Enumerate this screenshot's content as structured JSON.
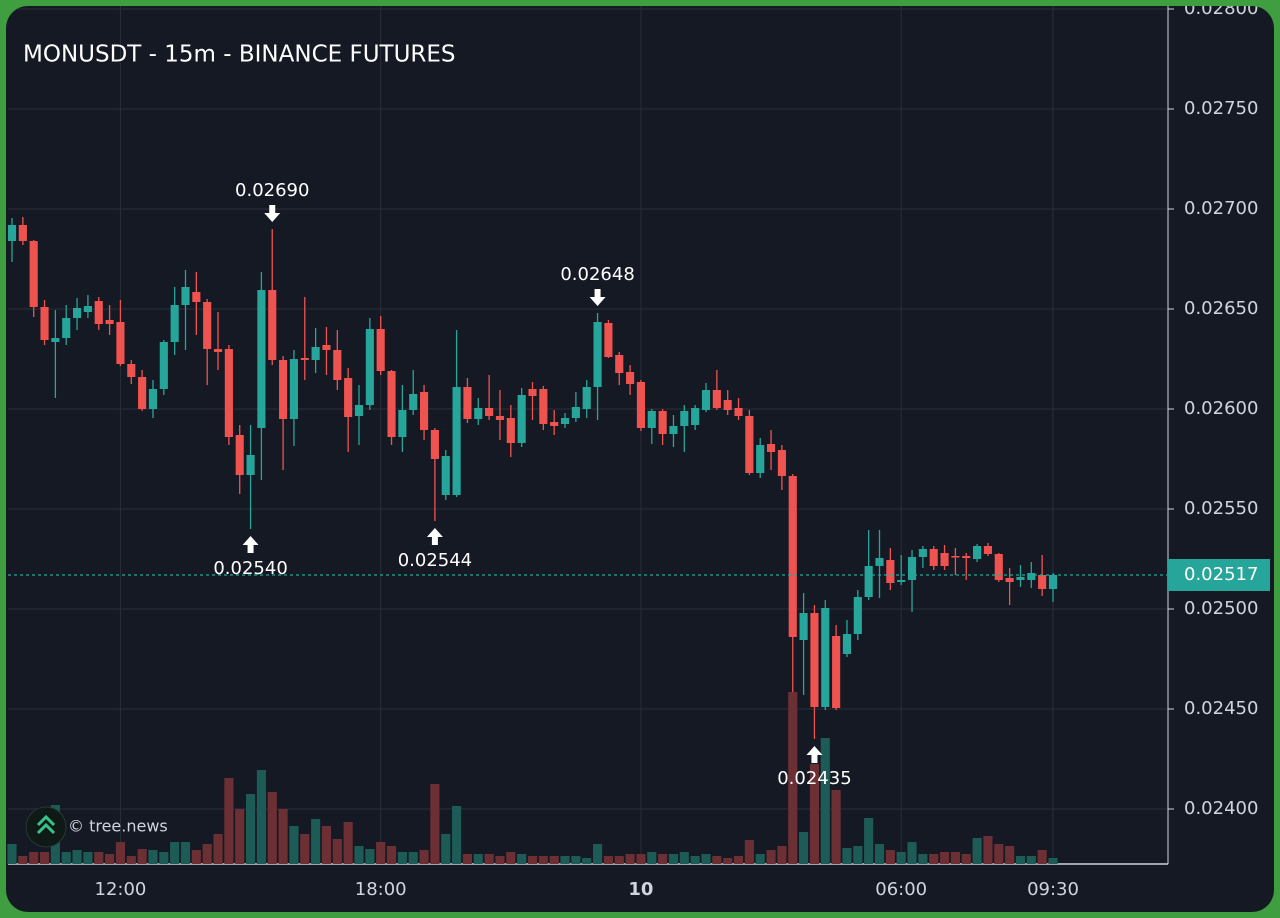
{
  "chart_data": {
    "type": "candlestick",
    "title": "MONUSDT - 15m - BINANCE FUTURES",
    "categories": [
      null,
      null,
      null,
      null,
      null,
      null,
      null,
      null,
      null,
      null,
      "12:00",
      null,
      null,
      null,
      null,
      null,
      null,
      null,
      null,
      null,
      null,
      null,
      null,
      null,
      null,
      null,
      null,
      null,
      null,
      null,
      null,
      null,
      null,
      null,
      "18:00",
      null,
      null,
      null,
      null,
      null,
      null,
      null,
      null,
      null,
      null,
      null,
      null,
      null,
      null,
      null,
      null,
      null,
      null,
      null,
      null,
      null,
      null,
      null,
      "10",
      null,
      null,
      null,
      null,
      null,
      null,
      null,
      null,
      null,
      null,
      null,
      null,
      null,
      null,
      null,
      null,
      null,
      null,
      null,
      null,
      null,
      null,
      null,
      "06:00",
      null,
      null,
      null,
      null,
      null,
      null,
      null,
      null,
      null,
      null,
      null,
      null,
      null,
      "09:30"
    ],
    "open": [
      0.02684,
      0.02692,
      0.02684,
      0.02651,
      0.026335,
      0.026355,
      0.026455,
      0.026485,
      0.02654,
      0.026445,
      0.026435,
      0.026225,
      0.02616,
      0.026,
      0.0261,
      0.026335,
      0.02652,
      0.026585,
      0.026535,
      0.0263,
      0.0263,
      0.02587,
      0.02567,
      0.025905,
      0.026595,
      0.026245,
      0.02595,
      0.026255,
      0.026245,
      0.02632,
      0.026295,
      0.026155,
      0.025965,
      0.02602,
      0.0264,
      0.02619,
      0.02586,
      0.025995,
      0.026085,
      0.025895,
      0.02557,
      0.02557,
      0.02611,
      0.02595,
      0.026005,
      0.025965,
      0.025955,
      0.02583,
      0.0261,
      0.0261,
      0.025935,
      0.025925,
      0.025955,
      0.026,
      0.02611,
      0.02643,
      0.02627,
      0.026185,
      0.026135,
      0.025905,
      0.02599,
      0.025875,
      0.025915,
      0.02592,
      0.025995,
      0.026095,
      0.026045,
      0.026005,
      0.025965,
      0.02568,
      0.025825,
      0.025795,
      0.025665,
      0.024845,
      0.02498,
      0.02451,
      0.024865,
      0.024775,
      0.024875,
      0.02506,
      0.025215,
      0.025245,
      0.025135,
      0.025145,
      0.02526,
      0.0253,
      0.02528,
      0.025265,
      0.025265,
      0.02525,
      0.025315,
      0.025275,
      0.025155,
      0.025145,
      0.025145,
      0.02517,
      0.0251
    ],
    "high": [
      0.026955,
      0.02696,
      0.026845,
      0.026545,
      0.026495,
      0.02652,
      0.026555,
      0.02657,
      0.02656,
      0.02652,
      0.026545,
      0.026245,
      0.026195,
      0.026145,
      0.026345,
      0.02661,
      0.026695,
      0.026685,
      0.02655,
      0.026485,
      0.02632,
      0.02592,
      0.02592,
      0.026685,
      0.0269,
      0.026265,
      0.026295,
      0.02656,
      0.026405,
      0.02641,
      0.026395,
      0.026205,
      0.02612,
      0.026455,
      0.026465,
      0.026195,
      0.02612,
      0.026195,
      0.02612,
      0.025905,
      0.025795,
      0.026395,
      0.026155,
      0.026055,
      0.02617,
      0.026095,
      0.02602,
      0.026105,
      0.026135,
      0.026115,
      0.025995,
      0.02598,
      0.026085,
      0.026145,
      0.02648,
      0.026445,
      0.026285,
      0.02622,
      0.026145,
      0.026,
      0.026,
      0.02597,
      0.02602,
      0.02602,
      0.02613,
      0.026195,
      0.026095,
      0.026055,
      0.025995,
      0.025855,
      0.025895,
      0.02582,
      0.025675,
      0.02508,
      0.02502,
      0.025045,
      0.02492,
      0.024945,
      0.025095,
      0.025395,
      0.025395,
      0.025305,
      0.02527,
      0.025295,
      0.025315,
      0.025315,
      0.02532,
      0.025305,
      0.02528,
      0.025325,
      0.02533,
      0.02528,
      0.025205,
      0.02522,
      0.025235,
      0.02527,
      0.02518
    ],
    "low": [
      0.026735,
      0.02682,
      0.02646,
      0.02632,
      0.026055,
      0.02632,
      0.026395,
      0.026455,
      0.026395,
      0.02637,
      0.026215,
      0.026125,
      0.02599,
      0.025955,
      0.02607,
      0.02627,
      0.026295,
      0.02637,
      0.02612,
      0.026195,
      0.02582,
      0.025575,
      0.0254,
      0.025645,
      0.02622,
      0.025695,
      0.025815,
      0.026145,
      0.02618,
      0.02617,
      0.026095,
      0.025785,
      0.02582,
      0.025995,
      0.02617,
      0.02582,
      0.025785,
      0.02597,
      0.025845,
      0.02544,
      0.025545,
      0.02556,
      0.02593,
      0.02592,
      0.025945,
      0.025845,
      0.02576,
      0.02581,
      0.025945,
      0.025895,
      0.02587,
      0.025905,
      0.025935,
      0.025955,
      0.025945,
      0.026255,
      0.02612,
      0.02607,
      0.02589,
      0.025825,
      0.02582,
      0.02581,
      0.025785,
      0.025895,
      0.025985,
      0.025995,
      0.02597,
      0.025945,
      0.02567,
      0.025655,
      0.025695,
      0.025595,
      0.024585,
      0.02457,
      0.02435,
      0.024495,
      0.024495,
      0.02476,
      0.024845,
      0.025045,
      0.025055,
      0.025095,
      0.02512,
      0.024985,
      0.025205,
      0.025195,
      0.025195,
      0.02517,
      0.025145,
      0.025235,
      0.025265,
      0.025135,
      0.02502,
      0.02511,
      0.025105,
      0.025065,
      0.025035
    ],
    "close": [
      0.02692,
      0.02684,
      0.02651,
      0.026345,
      0.026355,
      0.026455,
      0.026505,
      0.026515,
      0.026425,
      0.026425,
      0.026225,
      0.02616,
      0.026,
      0.0261,
      0.026335,
      0.02652,
      0.02661,
      0.026535,
      0.0263,
      0.026285,
      0.02586,
      0.02567,
      0.02577,
      0.026595,
      0.026245,
      0.02595,
      0.02625,
      0.026245,
      0.02631,
      0.026295,
      0.026145,
      0.02596,
      0.02602,
      0.0264,
      0.02619,
      0.02586,
      0.025995,
      0.026075,
      0.025895,
      0.02575,
      0.025765,
      0.02611,
      0.02595,
      0.026005,
      0.025965,
      0.025945,
      0.02583,
      0.02607,
      0.026065,
      0.025925,
      0.025915,
      0.025955,
      0.02601,
      0.02611,
      0.026435,
      0.02626,
      0.02618,
      0.026125,
      0.025905,
      0.02599,
      0.025875,
      0.025915,
      0.02599,
      0.026005,
      0.026095,
      0.026005,
      0.025995,
      0.025965,
      0.02568,
      0.02582,
      0.025785,
      0.025665,
      0.02486,
      0.02498,
      0.02451,
      0.025005,
      0.024505,
      0.024875,
      0.02506,
      0.025215,
      0.025255,
      0.02513,
      0.025145,
      0.02526,
      0.0253,
      0.025215,
      0.025215,
      0.02526,
      0.025255,
      0.025315,
      0.025275,
      0.025145,
      0.025135,
      0.02516,
      0.02518,
      0.0251,
      0.02517
    ],
    "volume": [
      20,
      8,
      12,
      12,
      59,
      12,
      14,
      12,
      12,
      10,
      22,
      8,
      15,
      14,
      12,
      22,
      22,
      14,
      20,
      30,
      86,
      55,
      70,
      94,
      72,
      55,
      38,
      30,
      45,
      38,
      25,
      42,
      18,
      15,
      22,
      18,
      12,
      12,
      14,
      80,
      30,
      58,
      10,
      10,
      10,
      8,
      12,
      10,
      8,
      8,
      8,
      8,
      8,
      6,
      20,
      8,
      8,
      10,
      10,
      12,
      10,
      10,
      12,
      8,
      10,
      8,
      6,
      8,
      24,
      10,
      14,
      18,
      172,
      32,
      100,
      126,
      74,
      16,
      18,
      46,
      20,
      14,
      12,
      22,
      10,
      10,
      12,
      12,
      10,
      26,
      28,
      20,
      18,
      8,
      8,
      14,
      6
    ],
    "up_color": "#26a69a",
    "down_color": "#ef5350",
    "volume_up_color": "#1d5b57",
    "volume_down_color": "#6c2f34",
    "ylim": [
      0.023725,
      0.028035
    ],
    "yticks": [
      {
        "value": 0.028,
        "label": "0.02800"
      },
      {
        "value": 0.0275,
        "label": "0.02750"
      },
      {
        "value": 0.027,
        "label": "0.02700"
      },
      {
        "value": 0.0265,
        "label": "0.02650"
      },
      {
        "value": 0.026,
        "label": "0.02600"
      },
      {
        "value": 0.0255,
        "label": "0.02550"
      },
      {
        "value": 0.025,
        "label": "0.02500"
      },
      {
        "value": 0.0245,
        "label": "0.02450"
      },
      {
        "value": 0.024,
        "label": "0.02400"
      }
    ],
    "grid": true,
    "last_price": {
      "value": 0.02517,
      "label": "0.02517"
    },
    "annotations": [
      {
        "x": 24,
        "value": 0.0269,
        "label": "0.02690",
        "direction": "down"
      },
      {
        "x": 22,
        "value": 0.0254,
        "label": "0.02540",
        "direction": "up"
      },
      {
        "x": 39,
        "value": 0.02544,
        "label": "0.02544",
        "direction": "up"
      },
      {
        "x": 54,
        "value": 0.02648,
        "label": "0.02648",
        "direction": "down"
      },
      {
        "x": 74,
        "value": 0.02435,
        "label": "0.02435",
        "direction": "up"
      }
    ]
  },
  "watermark": "© tree.news"
}
